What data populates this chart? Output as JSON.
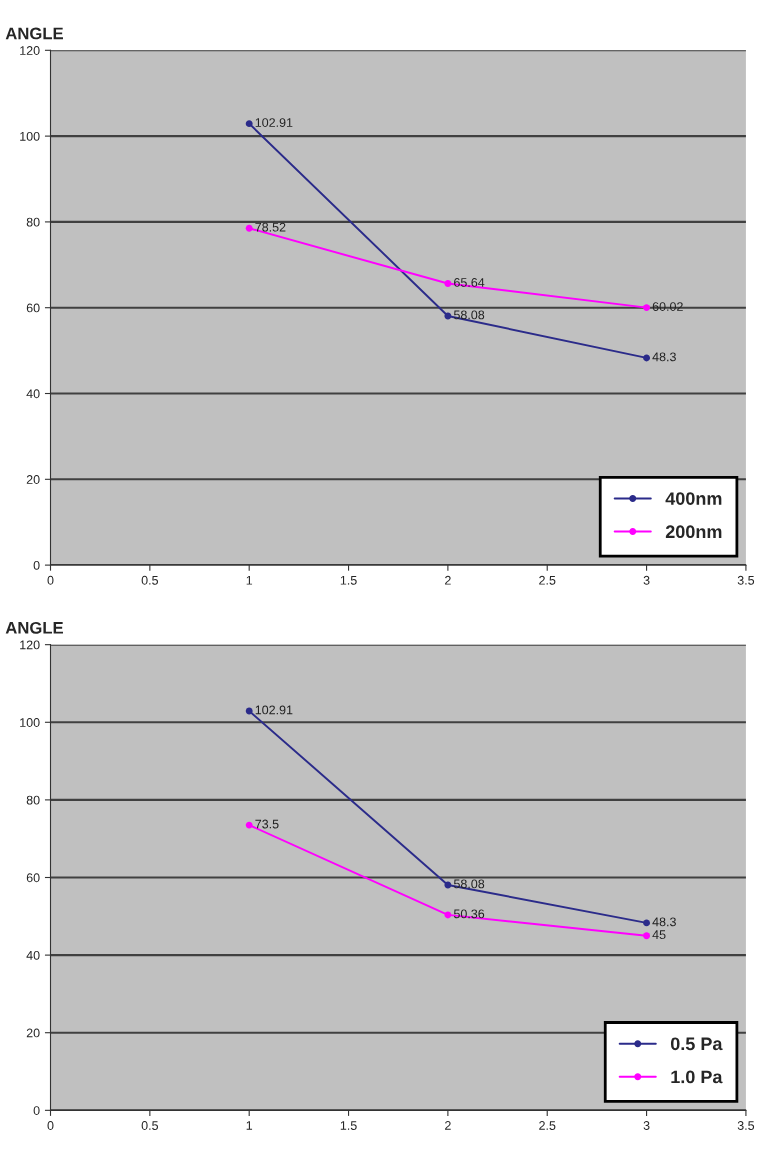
{
  "chart_data": [
    {
      "type": "line",
      "title": "ANGLE",
      "x": [
        1,
        2,
        3
      ],
      "series": [
        {
          "name": "400nm",
          "color": "#2b2b8a",
          "values": [
            102.91,
            58.08,
            48.3
          ]
        },
        {
          "name": "200nm",
          "color": "#ff00ff",
          "values": [
            78.52,
            65.64,
            60.02
          ]
        }
      ],
      "xlim": [
        0,
        3.5
      ],
      "xticks": [
        0,
        0.5,
        1,
        1.5,
        2,
        2.5,
        3,
        3.5
      ],
      "ylim": [
        0,
        120
      ],
      "yticks": [
        0,
        20,
        40,
        60,
        80,
        100,
        120
      ],
      "grid": "y",
      "legend": "bottom right",
      "marker": "circle",
      "line_style": "solid",
      "data_labels": true
    },
    {
      "type": "line",
      "title": "ANGLE",
      "x": [
        1,
        2,
        3
      ],
      "series": [
        {
          "name": "0.5 Pa",
          "color": "#2b2b8a",
          "values": [
            102.91,
            58.08,
            48.3
          ]
        },
        {
          "name": "1.0 Pa",
          "color": "#ff00ff",
          "values": [
            73.5,
            50.36,
            45
          ]
        }
      ],
      "xlim": [
        0,
        3.5
      ],
      "xticks": [
        0,
        0.5,
        1,
        1.5,
        2,
        2.5,
        3,
        3.5
      ],
      "ylim": [
        0,
        120
      ],
      "yticks": [
        0,
        20,
        40,
        60,
        80,
        100,
        120
      ],
      "grid": "y",
      "legend": "bottom right",
      "marker": "circle",
      "line_style": "solid",
      "data_labels": true
    }
  ]
}
